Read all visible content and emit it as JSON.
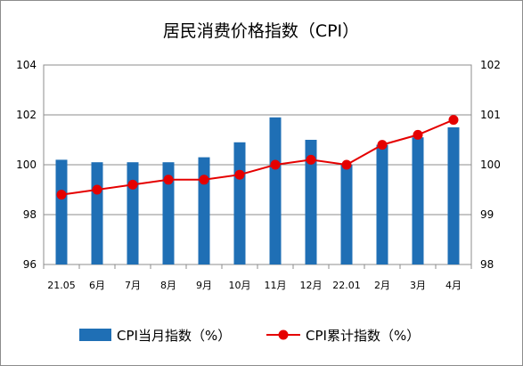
{
  "chart_data": {
    "type": "bar+line",
    "title": "居民消费价格指数（CPI）",
    "categories": [
      "21.05",
      "6月",
      "7月",
      "8月",
      "9月",
      "10月",
      "11月",
      "12月",
      "22.01",
      "2月",
      "3月",
      "4月"
    ],
    "series": [
      {
        "name": "CPI当月指数（%）",
        "type": "bar",
        "axis": "left",
        "color": "#1f6fb5",
        "values": [
          100.2,
          100.1,
          100.1,
          100.1,
          100.3,
          100.9,
          101.9,
          101.0,
          100.0,
          100.8,
          101.1,
          101.5
        ]
      },
      {
        "name": "CPI累计指数（%）",
        "type": "line",
        "axis": "right",
        "color": "#e50000",
        "values": [
          99.4,
          99.5,
          99.6,
          99.7,
          99.7,
          99.8,
          100.0,
          100.1,
          100.0,
          100.4,
          100.6,
          100.9
        ]
      }
    ],
    "y_left": {
      "min": 96,
      "max": 104,
      "ticks": [
        "96",
        "98",
        "100",
        "102",
        "104"
      ]
    },
    "y_right": {
      "min": 98,
      "max": 102,
      "ticks": [
        "98",
        "99",
        "100",
        "101",
        "102"
      ]
    },
    "grid": true,
    "legend_position": "bottom"
  }
}
